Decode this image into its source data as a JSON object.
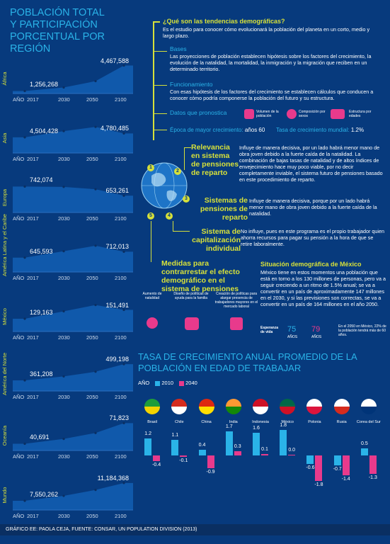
{
  "left": {
    "title_lines": [
      "POBLACIÓN TOTAL",
      "Y PARTICIPACIÓN",
      "PORCENTUAL POR REGIÓN"
    ],
    "axis_label": "AÑO",
    "years": [
      "2017",
      "2030",
      "2050",
      "2100"
    ]
  },
  "chart_data": [
    {
      "type": "area",
      "title": "POBLACIÓN TOTAL Y PARTICIPACIÓN PORCENTUAL POR REGIÓN",
      "x": [
        "2017",
        "2030",
        "2050",
        "2100"
      ],
      "series": [
        {
          "name": "África",
          "start_label": "1,256,268",
          "end_label": "4,467,588",
          "values": [
            1256268,
            1700000,
            2500000,
            4467588
          ]
        },
        {
          "name": "Asia",
          "start_label": "4,504,428",
          "end_label": "4,780,485",
          "values": [
            4504428,
            4950000,
            5250000,
            4780485
          ]
        },
        {
          "name": "Europa",
          "start_label": "742,074",
          "end_label": "653,261",
          "values": [
            742074,
            739000,
            716000,
            653261
          ]
        },
        {
          "name": "América Latina y el Caribe",
          "start_label": "645,593",
          "end_label": "712,013",
          "values": [
            645593,
            718000,
            780000,
            712013
          ]
        },
        {
          "name": "México",
          "start_label": "129,163",
          "end_label": "151,491",
          "values": [
            129163,
            148000,
            164000,
            151491
          ]
        },
        {
          "name": "América del Norte",
          "start_label": "361,208",
          "end_label": "499,198",
          "values": [
            361208,
            395000,
            435000,
            499198
          ]
        },
        {
          "name": "Oceanía",
          "start_label": "40,691",
          "end_label": "71,823",
          "values": [
            40691,
            48000,
            57000,
            71823
          ]
        },
        {
          "name": "Mundo",
          "start_label": "7,550,262",
          "end_label": "11,184,368",
          "values": [
            7550262,
            8550000,
            9770000,
            11184368
          ]
        }
      ]
    },
    {
      "type": "bar",
      "title": "TASA DE CRECIMIENTO ANUAL PROMEDIO DE LA POBLACIÓN EN EDAD DE TRABAJAR",
      "legend_label": "AÑO",
      "categories": [
        "Brasil",
        "Chile",
        "China",
        "India",
        "Indonesia",
        "México",
        "Polonia",
        "Rusia",
        "Corea del Sur"
      ],
      "series": [
        {
          "name": "2010",
          "color": "#2ab3e8",
          "values": [
            1.2,
            1.1,
            0.4,
            1.7,
            1.6,
            1.8,
            -0.6,
            -0.7,
            0.5
          ]
        },
        {
          "name": "2040",
          "color": "#e83a8c",
          "values": [
            -0.4,
            -0.1,
            -0.9,
            0.3,
            0.1,
            0.0,
            -1.8,
            -1.4,
            -1.3
          ]
        }
      ],
      "value_labels_2010": [
        "1.2",
        "1.1",
        "0.4",
        "1.7",
        "1.6",
        "1.8",
        "-0.6",
        "-0.7",
        "0.5"
      ],
      "value_labels_2040": [
        "-0.4",
        "-0.1",
        "-0.9",
        "0.3",
        "0.1",
        "0.0",
        "-1.8",
        "-1.4",
        "-1.3"
      ]
    }
  ],
  "right": {
    "q_title": "¿Qué son las tendencias demográficas?",
    "q_text": "Es el estudio para conocer cómo evolucionará la población del planeta en un corto, medio y largo plazo.",
    "bases_title": "Bases",
    "bases_text": "Las proyecciones de población establecen hipótesis sobre los factores del crecimiento, la evolución de la natalidad, la mortalidad, la inmigración y la migración que reciben en un determinado territorio.",
    "func_title": "Funcionamiento",
    "func_text": "Con esas hipótesis de los factores del crecimiento se establecen cálculos que conducen a conocer cómo podría componerse la población del futuro y su estructura.",
    "datos_title": "Datos que pronostica",
    "datos_items": [
      "Volumen de la población",
      "Composición por sexos",
      "Estructura por edades"
    ],
    "epoca_label": "Época de mayor crecimiento:",
    "epoca_value": "años 60",
    "tasa_label": "Tasa de crecimiento mundial:",
    "tasa_value": "1.2%",
    "rel_title": "Relevancia en sistema de pensiones de reparto",
    "rel_text": "Influye de manera decisiva, por un lado habrá menor mano de obra joven debido a la fuerte caída de la natalidad. La combinación de bajas tasas de natalidad y de altos índices de envejecimiento hace muy poco viable, por no decir completamente inviable, el sistema futuro de pensiones basado en este procedimiento de reparto.",
    "sis_title": "Sistemas de pensiones de reparto",
    "sis_text": "Influye de manera decisiva, porque por un lado habrá menor mano de obra joven debido a la fuerte caída de la natalidad.",
    "cap_title": "Sistema de capitalización individual",
    "cap_text": "No influye, pues en este programa es el propio trabajador quien ahorra recursos para pagar su pensión a la hora de que se retire laboralmente.",
    "med_title": "Medidas para contrarrestar el efecto demográfico en el sistema de pensiones",
    "med_items": [
      "Aumento de natalidad",
      "Diseño de políticas de ayuda para la familia",
      "Creación de políticas para alargar presencia de trabajadores mayores en el mercado laboral"
    ],
    "mex_title": "Situación demográfica de México",
    "mex_text": "México tiene en estos momentos una población que está en torno a los 130 millones de personas, pero va a seguir creciendo a un ritmo de 1.5% anual; se va a convertir en un país de aproximadamente 147 millones en el 2030, y si las previsiones son correctas, se va a convertir en un país de 164 millones en el año 2050.",
    "esp_label": "Esperanza de vida",
    "esp_m": "75",
    "esp_f": "79",
    "esp_unit": "AÑOS",
    "esp_note": "En el 2050 en México, 22% de la población tendrá más de 60 años.",
    "circles": [
      "1",
      "2",
      "3",
      "4",
      "5"
    ]
  },
  "footer": "GRÁFICO EE: PAOLA CEJA, FUENTE: CONSAR, UN POPULATION DIVISION (2013)"
}
